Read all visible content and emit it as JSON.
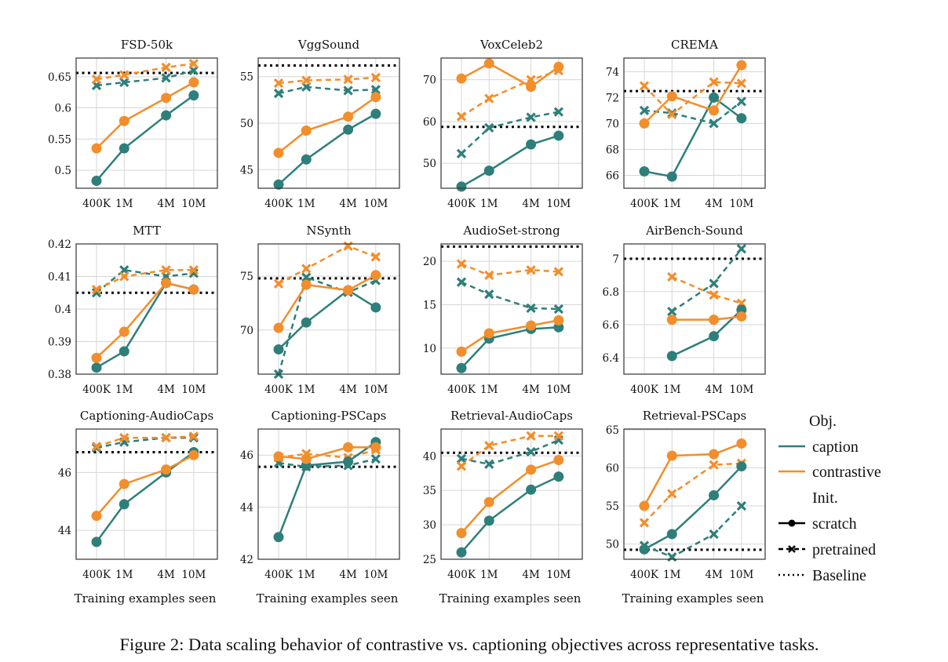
{
  "figure_caption": "Figure 2: Data scaling behavior of contrastive vs. captioning objectives across representative tasks.",
  "colors": {
    "caption": "#2e7f7a",
    "contrastive": "#f28e2b",
    "baseline": "#000000",
    "grid": "#d6d6d6"
  },
  "legend": {
    "obj_header": "Obj.",
    "caption": "caption",
    "contrastive": "contrastive",
    "init_header": "Init.",
    "scratch": "scratch",
    "pretrained": "pretrained",
    "baseline": "Baseline",
    "placement": "right of bottom row"
  },
  "chart_data": [
    {
      "type": "line",
      "title": "FSD-50k",
      "xlabel": "",
      "x": [
        400000,
        1000000,
        4000000,
        10000000
      ],
      "xticks": [
        "400K",
        "1M",
        "4M",
        "10M"
      ],
      "xscale": "log",
      "ylim": [
        0.471,
        0.68
      ],
      "yticks": [
        "0.5",
        "0.55",
        "0.6",
        "0.65"
      ],
      "grid": true,
      "baseline": 0.656,
      "series": [
        {
          "name": "caption scratch",
          "obj": "caption",
          "init": "scratch",
          "values": [
            0.483,
            0.535,
            0.588,
            0.62
          ]
        },
        {
          "name": "contrastive scratch",
          "obj": "contrastive",
          "init": "scratch",
          "values": [
            0.535,
            0.579,
            0.616,
            0.641
          ]
        },
        {
          "name": "caption pretrained",
          "obj": "caption",
          "init": "pretrained",
          "values": [
            0.636,
            0.641,
            0.648,
            0.66
          ]
        },
        {
          "name": "contrastive pretrained",
          "obj": "contrastive",
          "init": "pretrained",
          "values": [
            0.646,
            0.653,
            0.665,
            0.671
          ]
        }
      ]
    },
    {
      "type": "line",
      "title": "VggSound",
      "xlabel": "",
      "x": [
        400000,
        1000000,
        4000000,
        10000000
      ],
      "xticks": [
        "400K",
        "1M",
        "4M",
        "10M"
      ],
      "xscale": "log",
      "ylim": [
        43,
        57
      ],
      "yticks": [
        "45",
        "50",
        "55"
      ],
      "grid": true,
      "baseline": 56.2,
      "series": [
        {
          "name": "caption scratch",
          "obj": "caption",
          "init": "scratch",
          "values": [
            43.4,
            46.1,
            49.3,
            51.0
          ]
        },
        {
          "name": "contrastive scratch",
          "obj": "contrastive",
          "init": "scratch",
          "values": [
            46.8,
            49.2,
            50.7,
            52.8
          ]
        },
        {
          "name": "caption pretrained",
          "obj": "caption",
          "init": "pretrained",
          "values": [
            53.2,
            53.9,
            53.5,
            53.6
          ]
        },
        {
          "name": "contrastive pretrained",
          "obj": "contrastive",
          "init": "pretrained",
          "values": [
            54.3,
            54.6,
            54.7,
            54.9
          ]
        }
      ]
    },
    {
      "type": "line",
      "title": "VoxCeleb2",
      "xlabel": "",
      "x": [
        400000,
        1000000,
        4000000,
        10000000
      ],
      "xticks": [
        "400K",
        "1M",
        "4M",
        "10M"
      ],
      "xscale": "log",
      "ylim": [
        44,
        75.2
      ],
      "yticks": [
        "50",
        "60",
        "70"
      ],
      "grid": true,
      "baseline": 58.7,
      "series": [
        {
          "name": "caption scratch",
          "obj": "caption",
          "init": "scratch",
          "values": [
            44.4,
            48.2,
            54.5,
            56.6
          ]
        },
        {
          "name": "contrastive scratch",
          "obj": "contrastive",
          "init": "scratch",
          "values": [
            70.3,
            73.9,
            68.3,
            73.1
          ]
        },
        {
          "name": "caption pretrained",
          "obj": "caption",
          "init": "pretrained",
          "values": [
            52.3,
            58.5,
            61.0,
            62.3
          ]
        },
        {
          "name": "contrastive pretrained",
          "obj": "contrastive",
          "init": "pretrained",
          "values": [
            61.2,
            65.5,
            70.0,
            72.2
          ]
        }
      ]
    },
    {
      "type": "line",
      "title": "CREMA",
      "xlabel": "",
      "x": [
        400000,
        1000000,
        4000000,
        10000000
      ],
      "xticks": [
        "400K",
        "1M",
        "4M",
        "10M"
      ],
      "xscale": "log",
      "ylim": [
        65,
        75.05
      ],
      "yticks": [
        "66",
        "68",
        "70",
        "72",
        "74"
      ],
      "grid": true,
      "baseline": 72.5,
      "series": [
        {
          "name": "caption scratch",
          "obj": "caption",
          "init": "scratch",
          "values": [
            66.3,
            65.9,
            72.0,
            70.4
          ]
        },
        {
          "name": "contrastive scratch",
          "obj": "contrastive",
          "init": "scratch",
          "values": [
            70.0,
            72.1,
            71.0,
            74.5
          ]
        },
        {
          "name": "caption pretrained",
          "obj": "caption",
          "init": "pretrained",
          "values": [
            71.0,
            70.8,
            70.0,
            71.7
          ]
        },
        {
          "name": "contrastive pretrained",
          "obj": "contrastive",
          "init": "pretrained",
          "values": [
            72.9,
            70.7,
            73.2,
            73.1
          ]
        }
      ]
    },
    {
      "type": "line",
      "title": "MTT",
      "xlabel": "",
      "x": [
        400000,
        1000000,
        4000000,
        10000000
      ],
      "xticks": [
        "400K",
        "1M",
        "4M",
        "10M"
      ],
      "xscale": "log",
      "ylim": [
        0.38,
        0.42
      ],
      "yticks": [
        "0.38",
        "0.39",
        "0.4",
        "0.41",
        "0.42"
      ],
      "grid": true,
      "baseline": 0.405,
      "series": [
        {
          "name": "caption scratch",
          "obj": "caption",
          "init": "scratch",
          "values": [
            0.382,
            0.387,
            0.408,
            0.406
          ]
        },
        {
          "name": "contrastive scratch",
          "obj": "contrastive",
          "init": "scratch",
          "values": [
            0.385,
            0.393,
            0.408,
            0.406
          ]
        },
        {
          "name": "caption pretrained",
          "obj": "caption",
          "init": "pretrained",
          "values": [
            0.405,
            0.412,
            0.41,
            0.411
          ]
        },
        {
          "name": "contrastive pretrained",
          "obj": "contrastive",
          "init": "pretrained",
          "values": [
            0.406,
            0.41,
            0.412,
            0.412
          ]
        }
      ]
    },
    {
      "type": "line",
      "title": "NSynth",
      "xlabel": "",
      "x": [
        400000,
        1000000,
        4000000,
        10000000
      ],
      "xticks": [
        "400K",
        "1M",
        "4M",
        "10M"
      ],
      "xscale": "log",
      "ylim": [
        65.9,
        78.0
      ],
      "yticks": [
        "70",
        "75"
      ],
      "grid": true,
      "baseline": 74.8,
      "series": [
        {
          "name": "caption scratch",
          "obj": "caption",
          "init": "scratch",
          "values": [
            68.2,
            70.7,
            73.7,
            72.1
          ]
        },
        {
          "name": "contrastive scratch",
          "obj": "contrastive",
          "init": "scratch",
          "values": [
            70.2,
            74.2,
            73.7,
            75.1
          ]
        },
        {
          "name": "caption pretrained",
          "obj": "caption",
          "init": "pretrained",
          "values": [
            65.9,
            74.9,
            73.5,
            74.6
          ]
        },
        {
          "name": "contrastive pretrained",
          "obj": "contrastive",
          "init": "pretrained",
          "values": [
            74.3,
            75.7,
            77.8,
            76.8
          ]
        }
      ]
    },
    {
      "type": "line",
      "title": "AudioSet-strong",
      "xlabel": "",
      "x": [
        400000,
        1000000,
        4000000,
        10000000
      ],
      "xticks": [
        "400K",
        "1M",
        "4M",
        "10M"
      ],
      "xscale": "log",
      "ylim": [
        7.0,
        22.0
      ],
      "yticks": [
        "10",
        "15",
        "20"
      ],
      "grid": true,
      "baseline": 21.7,
      "series": [
        {
          "name": "caption scratch",
          "obj": "caption",
          "init": "scratch",
          "values": [
            7.7,
            11.1,
            12.2,
            12.4
          ]
        },
        {
          "name": "contrastive scratch",
          "obj": "contrastive",
          "init": "scratch",
          "values": [
            9.6,
            11.7,
            12.6,
            13.2
          ]
        },
        {
          "name": "caption pretrained",
          "obj": "caption",
          "init": "pretrained",
          "values": [
            17.6,
            16.2,
            14.6,
            14.5
          ]
        },
        {
          "name": "contrastive pretrained",
          "obj": "contrastive",
          "init": "pretrained",
          "values": [
            19.7,
            18.4,
            19.0,
            18.8
          ]
        }
      ]
    },
    {
      "type": "line",
      "title": "AirBench-Sound",
      "xlabel": "",
      "x": [
        400000,
        1000000,
        4000000,
        10000000
      ],
      "xticks": [
        "400K",
        "1M",
        "4M",
        "10M"
      ],
      "xscale": "log",
      "ylim": [
        6.3,
        7.09
      ],
      "yticks": [
        "6.4",
        "6.6",
        "6.8",
        "7"
      ],
      "grid": true,
      "baseline": 7.0,
      "series": [
        {
          "name": "caption scratch",
          "obj": "caption",
          "init": "scratch",
          "values": [
            null,
            6.41,
            6.53,
            6.69
          ]
        },
        {
          "name": "contrastive scratch",
          "obj": "contrastive",
          "init": "scratch",
          "values": [
            null,
            6.63,
            6.63,
            6.65
          ]
        },
        {
          "name": "caption pretrained",
          "obj": "caption",
          "init": "pretrained",
          "values": [
            null,
            6.68,
            6.85,
            7.06
          ]
        },
        {
          "name": "contrastive pretrained",
          "obj": "contrastive",
          "init": "pretrained",
          "values": [
            null,
            6.89,
            6.78,
            6.73
          ]
        }
      ]
    },
    {
      "type": "line",
      "title": "Captioning-AudioCaps",
      "xlabel": "Training examples seen",
      "x": [
        400000,
        1000000,
        4000000,
        10000000
      ],
      "xticks": [
        "400K",
        "1M",
        "4M",
        "10M"
      ],
      "xscale": "log",
      "ylim": [
        43.0,
        47.5
      ],
      "yticks": [
        "44",
        "46"
      ],
      "grid": true,
      "baseline": 46.7,
      "series": [
        {
          "name": "caption scratch",
          "obj": "caption",
          "init": "scratch",
          "values": [
            43.6,
            44.9,
            46.0,
            46.7
          ]
        },
        {
          "name": "contrastive scratch",
          "obj": "contrastive",
          "init": "scratch",
          "values": [
            44.5,
            45.6,
            46.1,
            46.6
          ]
        },
        {
          "name": "caption pretrained",
          "obj": "caption",
          "init": "pretrained",
          "values": [
            46.85,
            47.05,
            47.2,
            47.2
          ]
        },
        {
          "name": "contrastive pretrained",
          "obj": "contrastive",
          "init": "pretrained",
          "values": [
            46.9,
            47.2,
            47.2,
            47.25
          ]
        }
      ]
    },
    {
      "type": "line",
      "title": "Captioning-PSCaps",
      "xlabel": "Training examples seen",
      "x": [
        400000,
        1000000,
        4000000,
        10000000
      ],
      "xticks": [
        "400K",
        "1M",
        "4M",
        "10M"
      ],
      "xscale": "log",
      "ylim": [
        42.0,
        47.0
      ],
      "yticks": [
        "42",
        "44",
        "46"
      ],
      "grid": true,
      "baseline": 45.55,
      "series": [
        {
          "name": "caption scratch",
          "obj": "caption",
          "init": "scratch",
          "values": [
            42.85,
            45.6,
            45.75,
            46.5
          ]
        },
        {
          "name": "contrastive scratch",
          "obj": "contrastive",
          "init": "scratch",
          "values": [
            45.95,
            45.85,
            46.3,
            46.3
          ]
        },
        {
          "name": "caption pretrained",
          "obj": "caption",
          "init": "pretrained",
          "values": [
            45.7,
            45.55,
            45.6,
            45.85
          ]
        },
        {
          "name": "contrastive pretrained",
          "obj": "contrastive",
          "init": "pretrained",
          "values": [
            45.9,
            46.05,
            45.9,
            46.2
          ]
        }
      ]
    },
    {
      "type": "line",
      "title": "Retrieval-AudioCaps",
      "xlabel": "Training examples seen",
      "x": [
        400000,
        1000000,
        4000000,
        10000000
      ],
      "xticks": [
        "400K",
        "1M",
        "4M",
        "10M"
      ],
      "xscale": "log",
      "ylim": [
        25.0,
        43.9
      ],
      "yticks": [
        "25",
        "30",
        "35",
        "40"
      ],
      "grid": true,
      "baseline": 40.45,
      "series": [
        {
          "name": "caption scratch",
          "obj": "caption",
          "init": "scratch",
          "values": [
            26.0,
            30.6,
            35.1,
            37.0
          ]
        },
        {
          "name": "contrastive scratch",
          "obj": "contrastive",
          "init": "scratch",
          "values": [
            28.8,
            33.3,
            38.0,
            39.4
          ]
        },
        {
          "name": "caption pretrained",
          "obj": "caption",
          "init": "pretrained",
          "values": [
            39.6,
            38.8,
            40.6,
            42.3
          ]
        },
        {
          "name": "contrastive pretrained",
          "obj": "contrastive",
          "init": "pretrained",
          "values": [
            38.5,
            41.5,
            42.9,
            42.9
          ]
        }
      ]
    },
    {
      "type": "line",
      "title": "Retrieval-PSCaps",
      "xlabel": "Training examples seen",
      "x": [
        400000,
        1000000,
        4000000,
        10000000
      ],
      "xticks": [
        "400K",
        "1M",
        "4M",
        "10M"
      ],
      "xscale": "log",
      "ylim": [
        48.0,
        65.1
      ],
      "yticks": [
        "50",
        "55",
        "60",
        "65"
      ],
      "grid": true,
      "baseline": 49.25,
      "series": [
        {
          "name": "caption scratch",
          "obj": "caption",
          "init": "scratch",
          "values": [
            49.3,
            51.3,
            56.4,
            60.2
          ]
        },
        {
          "name": "contrastive scratch",
          "obj": "contrastive",
          "init": "scratch",
          "values": [
            55.0,
            61.6,
            61.8,
            63.2
          ]
        },
        {
          "name": "caption pretrained",
          "obj": "caption",
          "init": "pretrained",
          "values": [
            49.8,
            48.3,
            51.3,
            55.0
          ]
        },
        {
          "name": "contrastive pretrained",
          "obj": "contrastive",
          "init": "pretrained",
          "values": [
            52.8,
            56.6,
            60.4,
            60.6
          ]
        }
      ]
    }
  ]
}
